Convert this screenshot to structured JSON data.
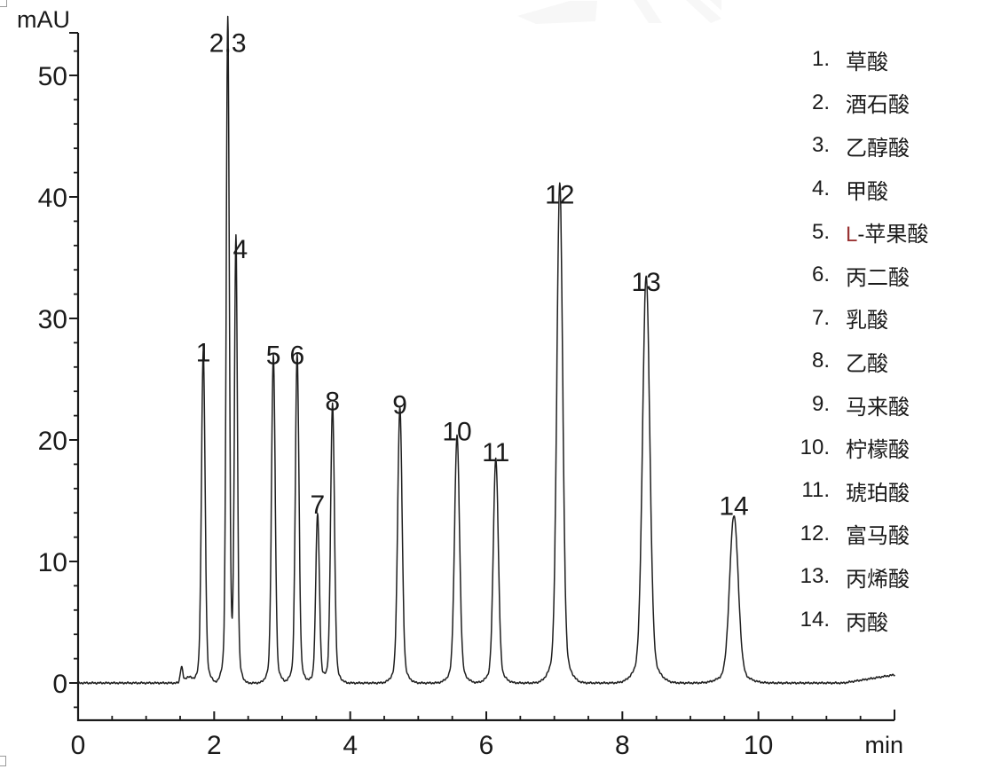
{
  "colors": {
    "curve": "#1f1f1f",
    "axis": "#1a1a1a",
    "text": "#1a1a1a",
    "l_prefix_red": "#993333",
    "watermark": "#f7f7f7",
    "handle_border": "#9a9a9a"
  },
  "chart_data": {
    "type": "line",
    "x_axis": {
      "label": "min",
      "min": 0,
      "max": 12,
      "major_ticks": [
        0,
        2,
        4,
        6,
        8,
        10
      ],
      "minor_tick_interval": 0.5
    },
    "y_axis": {
      "label": "mAU",
      "min": -3,
      "max": 53.5,
      "major_ticks": [
        0,
        10,
        20,
        30,
        40,
        50
      ],
      "minor_tick_interval": 2
    },
    "peaks": [
      {
        "label": "1",
        "name": "草酸",
        "retention_time_min": 1.84,
        "height_mAU": 25.5,
        "sigma_min": 0.026
      },
      {
        "label": "2,3",
        "name": "酒石酸、乙醇酸",
        "retention_time_min": 2.2,
        "height_mAU": 51.0,
        "sigma_min": 0.022
      },
      {
        "label": "4",
        "name": "甲酸",
        "retention_time_min": 2.32,
        "height_mAU": 34.0,
        "sigma_min": 0.021,
        "label_dx": 5
      },
      {
        "label": "5",
        "name": "L-苹果酸",
        "retention_time_min": 2.87,
        "height_mAU": 25.3,
        "sigma_min": 0.026
      },
      {
        "label": "6",
        "name": "丙二酸",
        "retention_time_min": 3.22,
        "height_mAU": 25.3,
        "sigma_min": 0.026
      },
      {
        "label": "7",
        "name": "乳酸",
        "retention_time_min": 3.52,
        "height_mAU": 13.0,
        "sigma_min": 0.026
      },
      {
        "label": "8",
        "name": "乙酸",
        "retention_time_min": 3.74,
        "height_mAU": 21.5,
        "sigma_min": 0.027
      },
      {
        "label": "9",
        "name": "马来酸",
        "retention_time_min": 4.73,
        "height_mAU": 21.2,
        "sigma_min": 0.032
      },
      {
        "label": "10",
        "name": "柠檬酸",
        "retention_time_min": 5.57,
        "height_mAU": 19.0,
        "sigma_min": 0.036
      },
      {
        "label": "11",
        "name": "琥珀酸",
        "retention_time_min": 6.14,
        "height_mAU": 17.3,
        "sigma_min": 0.036
      },
      {
        "label": "12",
        "name": "富马酸",
        "retention_time_min": 7.08,
        "height_mAU": 38.5,
        "sigma_min": 0.042
      },
      {
        "label": "13",
        "name": "丙烯酸",
        "retention_time_min": 8.35,
        "height_mAU": 31.3,
        "sigma_min": 0.052
      },
      {
        "label": "14",
        "name": "丙酸",
        "retention_time_min": 9.64,
        "height_mAU": 12.9,
        "sigma_min": 0.062
      }
    ],
    "baseline_blips": [
      {
        "t": 1.52,
        "height": 1.3,
        "sigma": 0.018
      },
      {
        "t": 1.62,
        "height": 0.5,
        "sigma": 0.05
      }
    ],
    "end_drift": {
      "start_min": 11.25,
      "slope_mAU_per_min": 0.9
    },
    "legend": {
      "items": [
        {
          "num": "1.",
          "name": "草酸"
        },
        {
          "num": "2.",
          "name": "酒石酸"
        },
        {
          "num": "3.",
          "name": "乙醇酸"
        },
        {
          "num": "4.",
          "name": "甲酸"
        },
        {
          "num": "5.",
          "name": "L-苹果酸",
          "red_prefix": "L"
        },
        {
          "num": "6.",
          "name": "丙二酸"
        },
        {
          "num": "7.",
          "name": "乳酸"
        },
        {
          "num": "8.",
          "name": "乙酸"
        },
        {
          "num": "9.",
          "name": "马来酸"
        },
        {
          "num": "10.",
          "name": "柠檬酸"
        },
        {
          "num": "11.",
          "name": "琥珀酸"
        },
        {
          "num": "12.",
          "name": "富马酸"
        },
        {
          "num": "13.",
          "name": "丙烯酸"
        },
        {
          "num": "14.",
          "name": "丙酸"
        }
      ]
    }
  }
}
